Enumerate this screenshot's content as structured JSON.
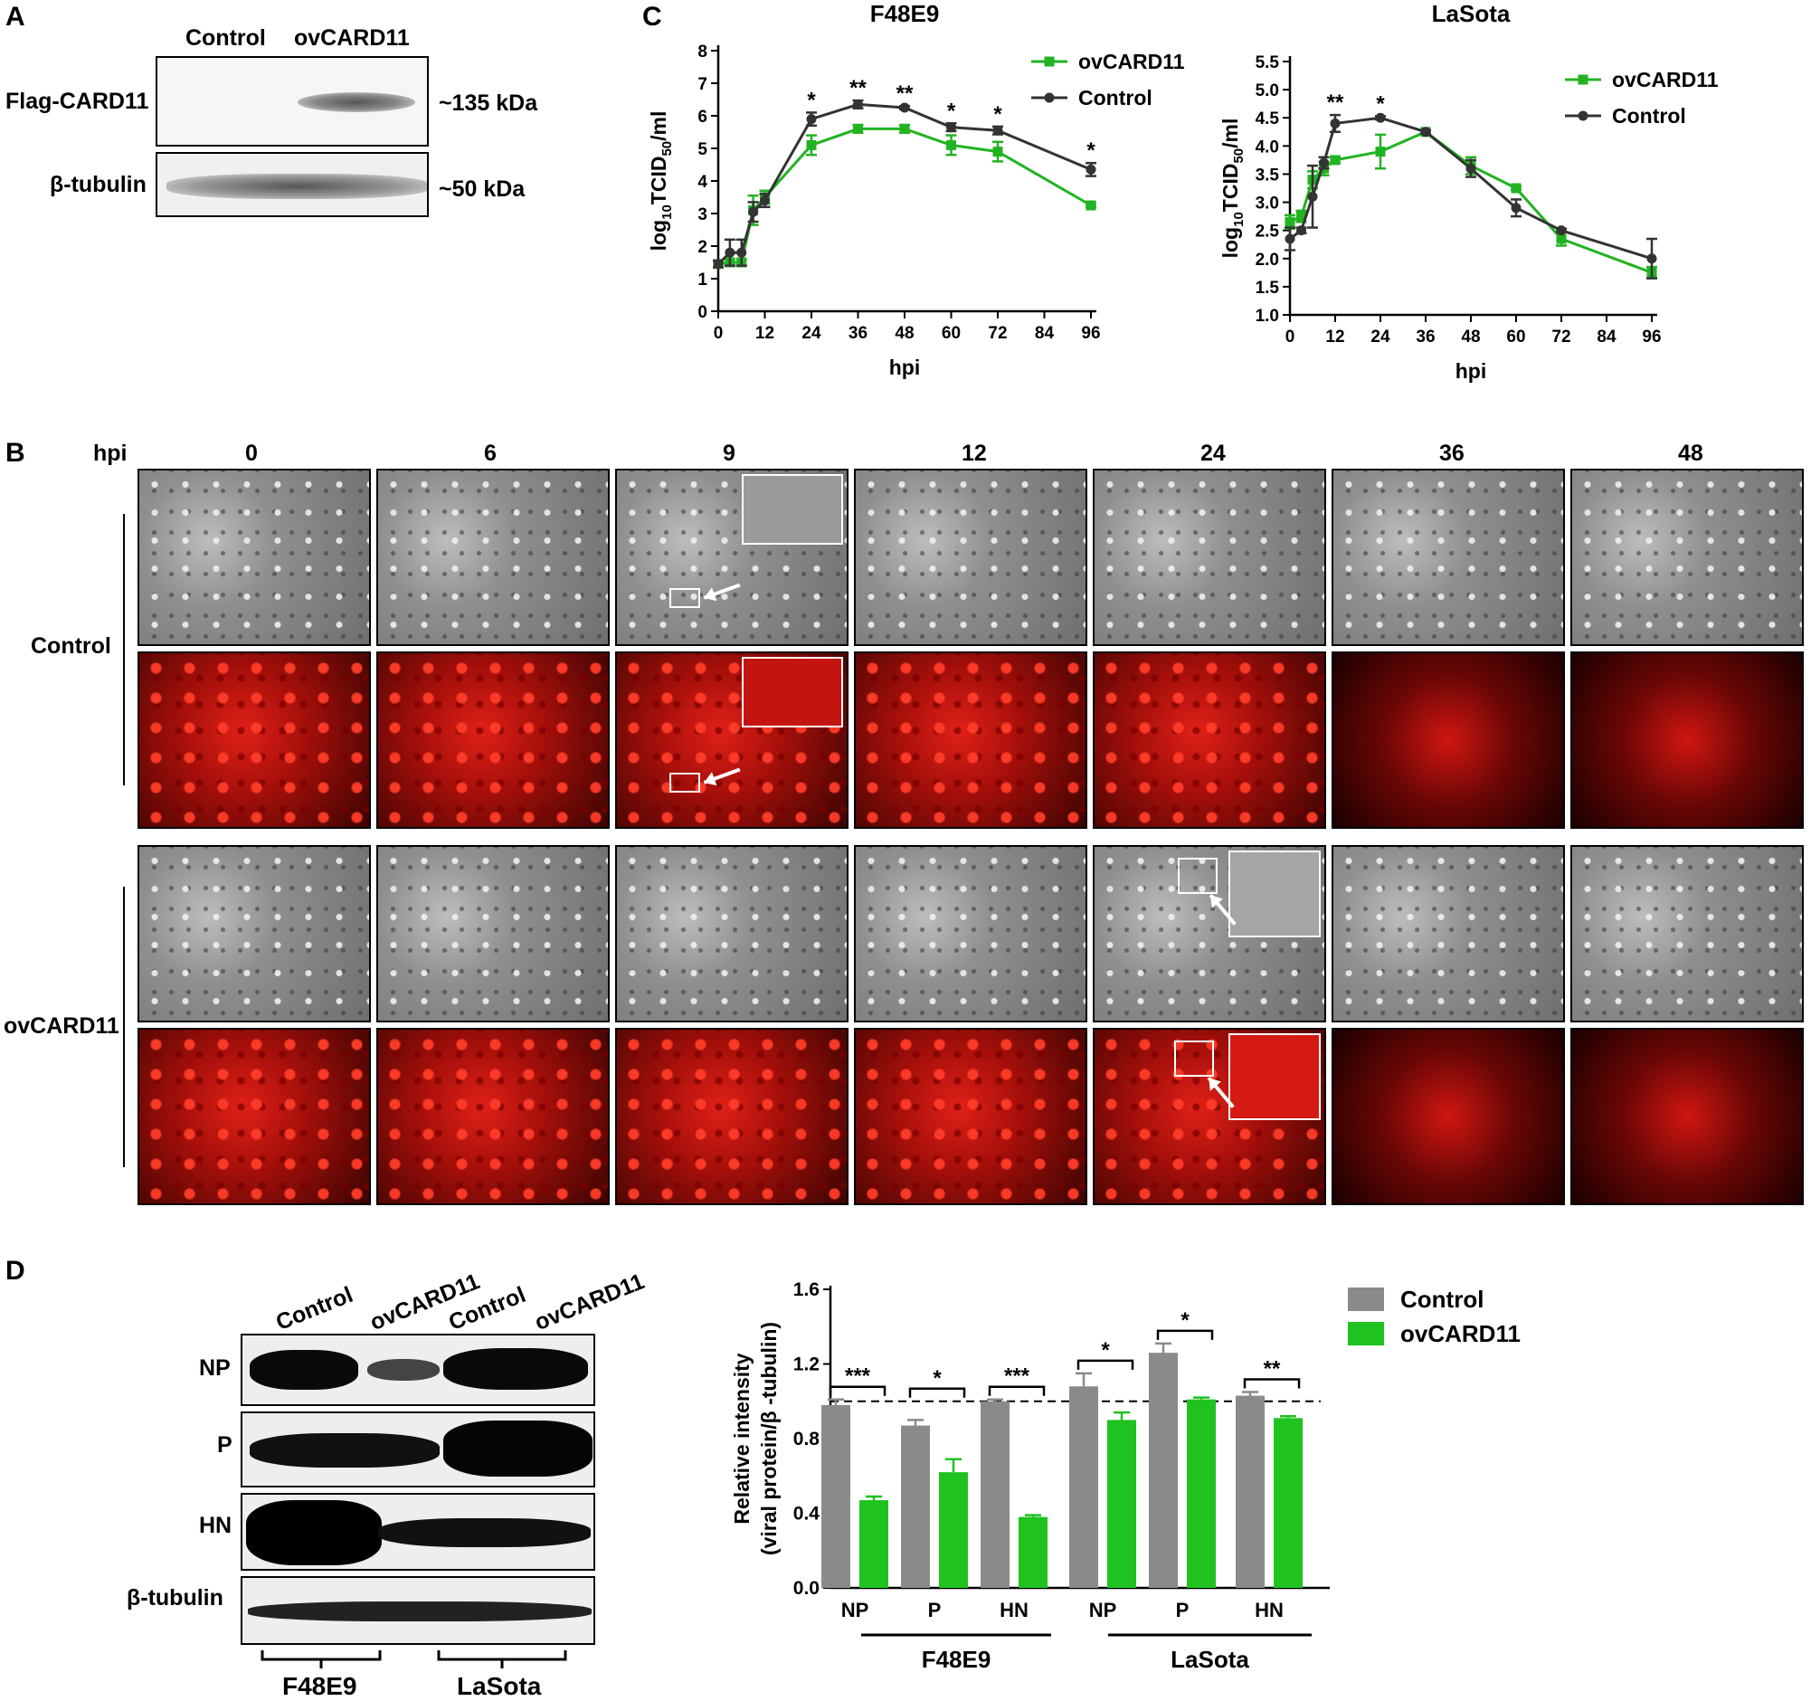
{
  "panelA": {
    "letter": "A",
    "lanes": [
      "Control",
      "ovCARD11"
    ],
    "rows": [
      {
        "label": "Flag-CARD11",
        "size": "~135 kDa"
      },
      {
        "label": "β-tubulin",
        "size": "~50 kDa"
      }
    ]
  },
  "panelB": {
    "letter": "B",
    "hpi_label": "hpi",
    "timepoints": [
      "0",
      "6",
      "9",
      "12",
      "24",
      "36",
      "48"
    ],
    "groups": [
      "Control",
      "ovCARD11"
    ]
  },
  "panelD": {
    "letter": "D",
    "lanes": [
      "Control",
      "ovCARD11",
      "Control",
      "ovCARD11"
    ],
    "rows": [
      "NP",
      "P",
      "HN",
      "β-tubulin"
    ],
    "strains": [
      "F48E9",
      "LaSota"
    ]
  },
  "panelC_letter": "C",
  "chart_data": [
    {
      "type": "line",
      "title": "F48E9",
      "xlabel": "hpi",
      "ylabel": "log10TCID50/ml",
      "xlim": [
        0,
        96
      ],
      "ylim": [
        0,
        8
      ],
      "xticks": [
        0,
        12,
        24,
        36,
        48,
        60,
        72,
        84,
        96
      ],
      "yticks": [
        0,
        1,
        2,
        3,
        4,
        5,
        6,
        7,
        8
      ],
      "legend": "top-right",
      "x": [
        0,
        3,
        6,
        9,
        12,
        24,
        36,
        48,
        60,
        72,
        96
      ],
      "series": [
        {
          "name": "ovCARD11",
          "color": "#22b322",
          "values": [
            1.45,
            1.5,
            1.5,
            3.1,
            3.5,
            5.1,
            5.6,
            5.6,
            5.1,
            4.9,
            3.25
          ],
          "errors": [
            0.1,
            0.1,
            0.1,
            0.45,
            0.2,
            0.3,
            0.12,
            0.12,
            0.3,
            0.3,
            0.05
          ]
        },
        {
          "name": "Control",
          "color": "#333333",
          "values": [
            1.45,
            1.8,
            1.8,
            3.05,
            3.4,
            5.9,
            6.35,
            6.25,
            5.65,
            5.55,
            4.35
          ],
          "errors": [
            0.1,
            0.4,
            0.4,
            0.3,
            0.2,
            0.2,
            0.12,
            0.05,
            0.12,
            0.12,
            0.2
          ]
        }
      ],
      "annotations": [
        {
          "x": 24,
          "text": "*"
        },
        {
          "x": 36,
          "text": "**"
        },
        {
          "x": 48,
          "text": "**"
        },
        {
          "x": 60,
          "text": "*"
        },
        {
          "x": 72,
          "text": "*"
        },
        {
          "x": 96,
          "text": "*"
        }
      ]
    },
    {
      "type": "line",
      "title": "LaSota",
      "xlabel": "hpi",
      "ylabel": "log10TCID50/ml",
      "xlim": [
        0,
        96
      ],
      "ylim": [
        1.0,
        5.5
      ],
      "xticks": [
        0,
        12,
        24,
        36,
        48,
        60,
        72,
        84,
        96
      ],
      "yticks": [
        1.0,
        1.5,
        2.0,
        2.5,
        3.0,
        3.5,
        4.0,
        4.5,
        5.0,
        5.5
      ],
      "legend": "top-right",
      "x": [
        0,
        3,
        6,
        9,
        12,
        24,
        36,
        48,
        60,
        72,
        96
      ],
      "series": [
        {
          "name": "ovCARD11",
          "color": "#22b322",
          "values": [
            2.65,
            2.75,
            3.4,
            3.6,
            3.75,
            3.9,
            4.25,
            3.65,
            3.25,
            2.35,
            1.75
          ],
          "errors": [
            0.12,
            0.1,
            0.15,
            0.12,
            0.05,
            0.3,
            0.03,
            0.15,
            0.03,
            0.12,
            0.1
          ]
        },
        {
          "name": "Control",
          "color": "#333333",
          "values": [
            2.35,
            2.5,
            3.1,
            3.7,
            4.4,
            4.5,
            4.25,
            3.6,
            2.9,
            2.5,
            2.0
          ],
          "errors": [
            0.2,
            0.05,
            0.55,
            0.1,
            0.15,
            0.03,
            0.03,
            0.15,
            0.15,
            0.03,
            0.35
          ]
        }
      ],
      "annotations": [
        {
          "x": 12,
          "text": "**"
        },
        {
          "x": 24,
          "text": "*"
        }
      ]
    },
    {
      "type": "bar",
      "ylabel_line1": "Relative intensity",
      "ylabel_line2": "(viral protein/β -tubulin)",
      "ylim": [
        0,
        1.6
      ],
      "yticks": [
        "0.0",
        "0.4",
        "0.8",
        "1.2",
        "1.6"
      ],
      "categories": [
        "NP",
        "P",
        "HN",
        "NP",
        "P",
        "HN"
      ],
      "groups": [
        {
          "name": "F48E9"
        },
        {
          "name": "LaSota"
        }
      ],
      "reference_line": 1.0,
      "legend": "top-right",
      "series": [
        {
          "name": "Control",
          "color": "#8a8a8a",
          "values": [
            0.98,
            0.87,
            1.0,
            1.08,
            1.26,
            1.03
          ],
          "errors": [
            0.03,
            0.03,
            0.01,
            0.07,
            0.05,
            0.02
          ]
        },
        {
          "name": "ovCARD11",
          "color": "#1fc21f",
          "values": [
            0.47,
            0.62,
            0.38,
            0.9,
            1.01,
            0.91
          ],
          "errors": [
            0.02,
            0.07,
            0.01,
            0.04,
            0.01,
            0.01
          ]
        }
      ],
      "significance": [
        "***",
        "*",
        "***",
        "*",
        "*",
        "**"
      ]
    }
  ]
}
